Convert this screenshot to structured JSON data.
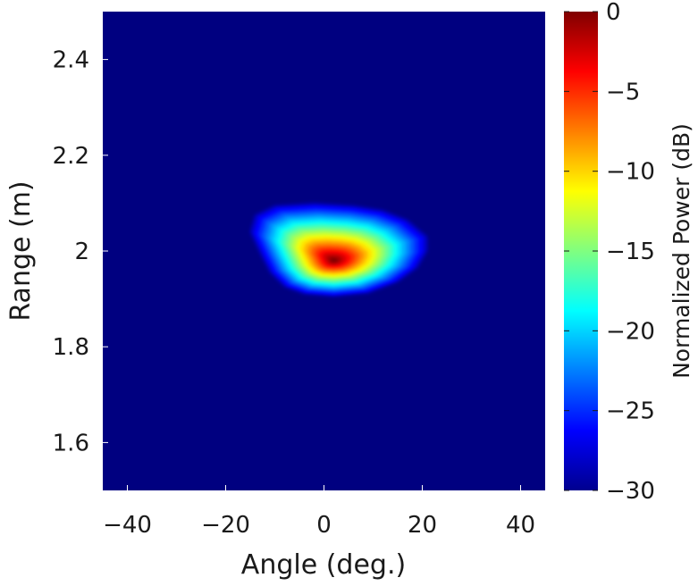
{
  "chart_data": {
    "type": "heatmap",
    "title": "",
    "xlabel": "Angle (deg.)",
    "ylabel": "Range (m)",
    "xlim": [
      -45,
      45
    ],
    "ylim": [
      1.5,
      2.5
    ],
    "xticks": [
      -40,
      -20,
      0,
      20,
      40
    ],
    "xtick_labels": [
      "−40",
      "−20",
      "0",
      "20",
      "40"
    ],
    "yticks": [
      1.6,
      1.8,
      2.0,
      2.2,
      2.4
    ],
    "ytick_labels": [
      "1.6",
      "1.8",
      "2",
      "2.2",
      "2.4"
    ],
    "colormap": "jet",
    "background_color": "#000080",
    "colorbar": {
      "label": "Normalized Power (dB)",
      "range": [
        -30,
        0
      ],
      "ticks": [
        0,
        -5,
        -10,
        -15,
        -20,
        -25,
        -30
      ],
      "tick_labels": [
        "0",
        "−5",
        "−10",
        "−15",
        "−20",
        "−25",
        "−30"
      ]
    },
    "hotspot": {
      "peak_angle_deg": 2,
      "peak_range_m": 1.98,
      "peak_power_db": 0,
      "angle_extent_deg": [
        -15,
        21
      ],
      "range_extent_m": [
        1.9,
        2.1
      ],
      "level_above_floor_db": -30
    },
    "grid": false
  }
}
